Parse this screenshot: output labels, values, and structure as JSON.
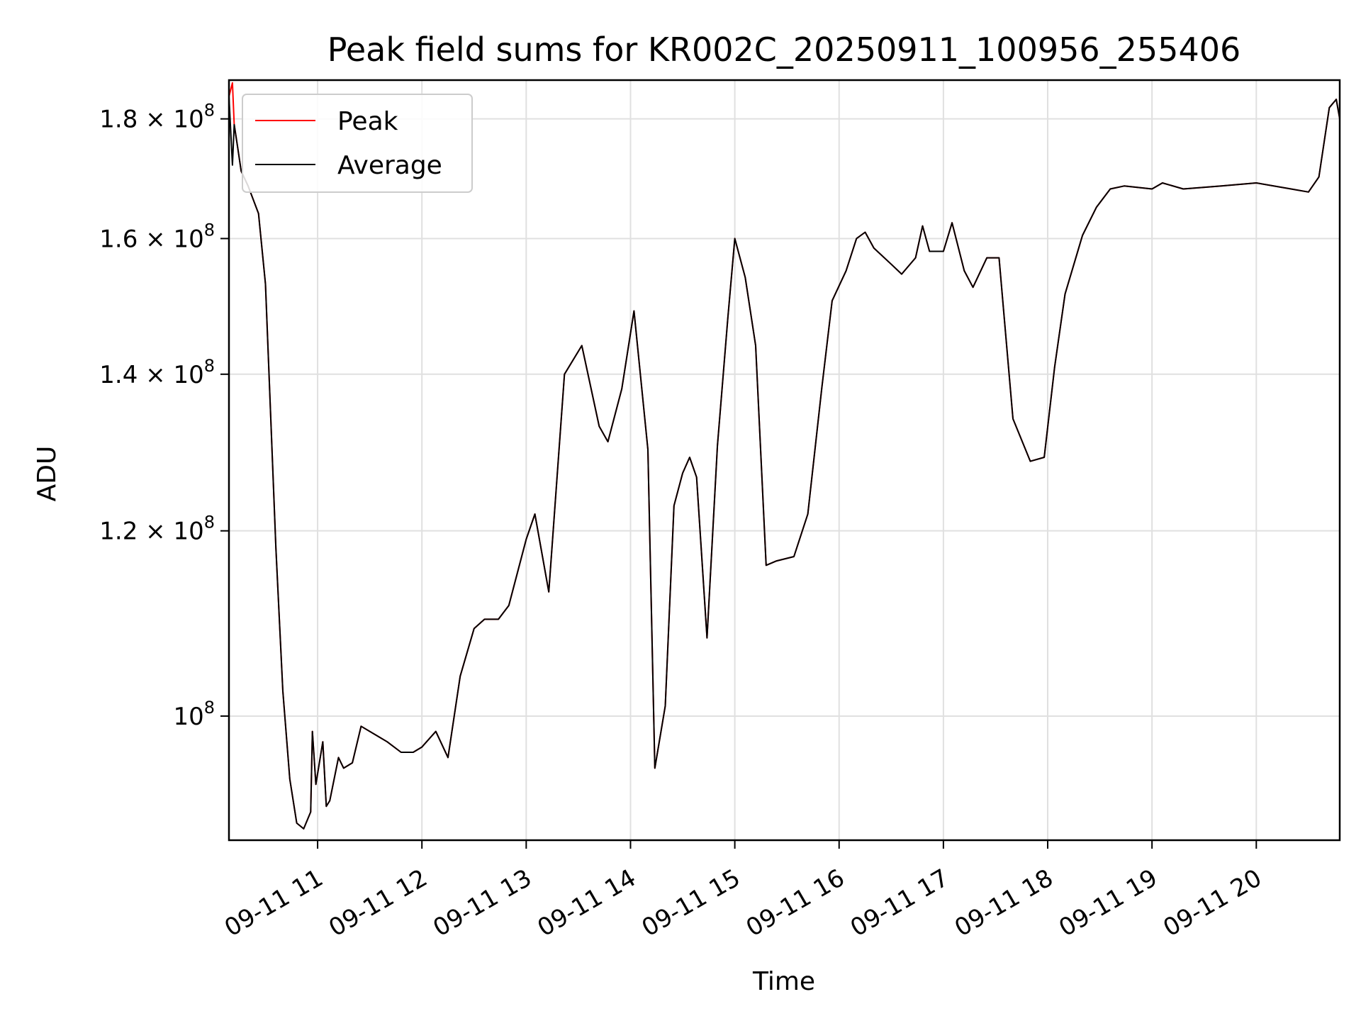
{
  "chart_data": {
    "type": "line",
    "title": "Peak field sums for KR002C_20250911_100956_255406",
    "xlabel": "Time",
    "ylabel": "ADU",
    "x_axis": {
      "ticks": [
        {
          "value": "2025-09-11 11:00",
          "label": "09-11 11"
        },
        {
          "value": "2025-09-11 12:00",
          "label": "09-11 12"
        },
        {
          "value": "2025-09-11 13:00",
          "label": "09-11 13"
        },
        {
          "value": "2025-09-11 14:00",
          "label": "09-11 14"
        },
        {
          "value": "2025-09-11 15:00",
          "label": "09-11 15"
        },
        {
          "value": "2025-09-11 16:00",
          "label": "09-11 16"
        },
        {
          "value": "2025-09-11 17:00",
          "label": "09-11 17"
        },
        {
          "value": "2025-09-11 18:00",
          "label": "09-11 18"
        },
        {
          "value": "2025-09-11 19:00",
          "label": "09-11 19"
        },
        {
          "value": "2025-09-11 20:00",
          "label": "09-11 20"
        }
      ],
      "xlim": [
        "2025-09-11 10:09",
        "2025-09-11 20:48"
      ]
    },
    "y_axis": {
      "scale": "log",
      "ylim": [
        88500000,
        187000000
      ],
      "ticks": [
        {
          "value": 100000000,
          "mantissa": "",
          "exp": "8"
        },
        {
          "value": 120000000,
          "mantissa": "1.2",
          "exp": "8"
        },
        {
          "value": 140000000,
          "mantissa": "1.4",
          "exp": "8"
        },
        {
          "value": 160000000,
          "mantissa": "1.6",
          "exp": "8"
        },
        {
          "value": 180000000,
          "mantissa": "1.8",
          "exp": "8"
        }
      ]
    },
    "grid": true,
    "legend_position": "top-left",
    "series": [
      {
        "name": "Peak",
        "color": "#ff0000",
        "x": [
          "2025-09-11 10:09",
          "2025-09-11 10:11",
          "2025-09-11 10:12",
          "2025-09-11 10:14",
          "2025-09-11 10:16",
          "2025-09-11 10:20",
          "2025-09-11 10:26",
          "2025-09-11 10:30",
          "2025-09-11 10:36",
          "2025-09-11 10:40",
          "2025-09-11 10:44",
          "2025-09-11 10:48",
          "2025-09-11 10:52",
          "2025-09-11 10:56",
          "2025-09-11 10:57",
          "2025-09-11 10:59",
          "2025-09-11 11:03",
          "2025-09-11 11:05",
          "2025-09-11 11:07",
          "2025-09-11 11:12",
          "2025-09-11 11:15",
          "2025-09-11 11:20",
          "2025-09-11 11:25",
          "2025-09-11 11:35",
          "2025-09-11 11:40",
          "2025-09-11 11:48",
          "2025-09-11 11:55",
          "2025-09-11 12:00",
          "2025-09-11 12:08",
          "2025-09-11 12:15",
          "2025-09-11 12:22",
          "2025-09-11 12:30",
          "2025-09-11 12:36",
          "2025-09-11 12:44",
          "2025-09-11 12:50",
          "2025-09-11 13:00",
          "2025-09-11 13:05",
          "2025-09-11 13:13",
          "2025-09-11 13:22",
          "2025-09-11 13:32",
          "2025-09-11 13:42",
          "2025-09-11 13:47",
          "2025-09-11 13:55",
          "2025-09-11 14:02",
          "2025-09-11 14:10",
          "2025-09-11 14:14",
          "2025-09-11 14:20",
          "2025-09-11 14:25",
          "2025-09-11 14:30",
          "2025-09-11 14:34",
          "2025-09-11 14:38",
          "2025-09-11 14:44",
          "2025-09-11 14:50",
          "2025-09-11 14:56",
          "2025-09-11 15:00",
          "2025-09-11 15:06",
          "2025-09-11 15:12",
          "2025-09-11 15:18",
          "2025-09-11 15:24",
          "2025-09-11 15:34",
          "2025-09-11 15:42",
          "2025-09-11 15:50",
          "2025-09-11 15:56",
          "2025-09-11 16:04",
          "2025-09-11 16:10",
          "2025-09-11 16:15",
          "2025-09-11 16:20",
          "2025-09-11 16:30",
          "2025-09-11 16:36",
          "2025-09-11 16:44",
          "2025-09-11 16:48",
          "2025-09-11 16:52",
          "2025-09-11 17:00",
          "2025-09-11 17:05",
          "2025-09-11 17:12",
          "2025-09-11 17:17",
          "2025-09-11 17:25",
          "2025-09-11 17:32",
          "2025-09-11 17:40",
          "2025-09-11 17:50",
          "2025-09-11 17:58",
          "2025-09-11 18:04",
          "2025-09-11 18:10",
          "2025-09-11 18:20",
          "2025-09-11 18:28",
          "2025-09-11 18:36",
          "2025-09-11 18:44",
          "2025-09-11 19:00",
          "2025-09-11 19:06",
          "2025-09-11 19:18",
          "2025-09-11 19:40",
          "2025-09-11 20:00",
          "2025-09-11 20:20",
          "2025-09-11 20:30",
          "2025-09-11 20:36",
          "2025-09-11 20:42",
          "2025-09-11 20:46",
          "2025-09-11 20:48"
        ],
        "y": [
          184000000,
          186500000,
          179000000,
          175000000,
          171000000,
          168500000,
          164000000,
          153000000,
          118000000,
          102500000,
          94000000,
          90000000,
          89500000,
          91000000,
          98500000,
          93500000,
          97500000,
          91500000,
          92000000,
          96000000,
          95000000,
          95500000,
          99000000,
          98000000,
          97500000,
          96500000,
          96500000,
          97000000,
          98500000,
          96000000,
          104000000,
          109000000,
          110000000,
          110000000,
          111500000,
          119000000,
          122000000,
          113000000,
          140000000,
          144000000,
          133000000,
          131000000,
          138000000,
          149000000,
          130000000,
          95000000,
          101000000,
          123000000,
          127000000,
          129000000,
          126500000,
          108000000,
          130500000,
          148000000,
          160000000,
          154000000,
          144000000,
          116000000,
          116500000,
          117000000,
          122000000,
          138000000,
          150500000,
          155000000,
          160000000,
          161000000,
          158500000,
          156000000,
          154500000,
          157000000,
          162000000,
          158000000,
          158000000,
          162500000,
          155000000,
          152500000,
          157000000,
          157000000,
          134000000,
          128500000,
          129000000,
          141000000,
          151500000,
          160500000,
          165000000,
          168000000,
          168500000,
          168000000,
          169000000,
          168000000,
          168500000,
          169000000,
          168000000,
          167500000,
          170000000,
          182000000,
          183500000,
          180000000
        ],
        "note": "Peak closely tracks Average except for a brief spike to the top of the axis at the very start."
      },
      {
        "name": "Average",
        "color": "#000000",
        "x": [
          "2025-09-11 10:09",
          "2025-09-11 10:11",
          "2025-09-11 10:12",
          "2025-09-11 10:14",
          "2025-09-11 10:16",
          "2025-09-11 10:20",
          "2025-09-11 10:26",
          "2025-09-11 10:30",
          "2025-09-11 10:36",
          "2025-09-11 10:40",
          "2025-09-11 10:44",
          "2025-09-11 10:48",
          "2025-09-11 10:52",
          "2025-09-11 10:56",
          "2025-09-11 10:57",
          "2025-09-11 10:59",
          "2025-09-11 11:03",
          "2025-09-11 11:05",
          "2025-09-11 11:07",
          "2025-09-11 11:12",
          "2025-09-11 11:15",
          "2025-09-11 11:20",
          "2025-09-11 11:25",
          "2025-09-11 11:35",
          "2025-09-11 11:40",
          "2025-09-11 11:48",
          "2025-09-11 11:55",
          "2025-09-11 12:00",
          "2025-09-11 12:08",
          "2025-09-11 12:15",
          "2025-09-11 12:22",
          "2025-09-11 12:30",
          "2025-09-11 12:36",
          "2025-09-11 12:44",
          "2025-09-11 12:50",
          "2025-09-11 13:00",
          "2025-09-11 13:05",
          "2025-09-11 13:13",
          "2025-09-11 13:22",
          "2025-09-11 13:32",
          "2025-09-11 13:42",
          "2025-09-11 13:47",
          "2025-09-11 13:55",
          "2025-09-11 14:02",
          "2025-09-11 14:10",
          "2025-09-11 14:14",
          "2025-09-11 14:20",
          "2025-09-11 14:25",
          "2025-09-11 14:30",
          "2025-09-11 14:34",
          "2025-09-11 14:38",
          "2025-09-11 14:44",
          "2025-09-11 14:50",
          "2025-09-11 14:56",
          "2025-09-11 15:00",
          "2025-09-11 15:06",
          "2025-09-11 15:12",
          "2025-09-11 15:18",
          "2025-09-11 15:24",
          "2025-09-11 15:34",
          "2025-09-11 15:42",
          "2025-09-11 15:50",
          "2025-09-11 15:56",
          "2025-09-11 16:04",
          "2025-09-11 16:10",
          "2025-09-11 16:15",
          "2025-09-11 16:20",
          "2025-09-11 16:30",
          "2025-09-11 16:36",
          "2025-09-11 16:44",
          "2025-09-11 16:48",
          "2025-09-11 16:52",
          "2025-09-11 17:00",
          "2025-09-11 17:05",
          "2025-09-11 17:12",
          "2025-09-11 17:17",
          "2025-09-11 17:25",
          "2025-09-11 17:32",
          "2025-09-11 17:40",
          "2025-09-11 17:50",
          "2025-09-11 17:58",
          "2025-09-11 18:04",
          "2025-09-11 18:10",
          "2025-09-11 18:20",
          "2025-09-11 18:28",
          "2025-09-11 18:36",
          "2025-09-11 18:44",
          "2025-09-11 19:00",
          "2025-09-11 19:06",
          "2025-09-11 19:18",
          "2025-09-11 19:40",
          "2025-09-11 20:00",
          "2025-09-11 20:20",
          "2025-09-11 20:30",
          "2025-09-11 20:36",
          "2025-09-11 20:42",
          "2025-09-11 20:46",
          "2025-09-11 20:48"
        ],
        "y": [
          184000000,
          172000000,
          179000000,
          175000000,
          171000000,
          168500000,
          164000000,
          153000000,
          118000000,
          102500000,
          94000000,
          90000000,
          89500000,
          91000000,
          98500000,
          93500000,
          97500000,
          91500000,
          92000000,
          96000000,
          95000000,
          95500000,
          99000000,
          98000000,
          97500000,
          96500000,
          96500000,
          97000000,
          98500000,
          96000000,
          104000000,
          109000000,
          110000000,
          110000000,
          111500000,
          119000000,
          122000000,
          113000000,
          140000000,
          144000000,
          133000000,
          131000000,
          138000000,
          149000000,
          130000000,
          95000000,
          101000000,
          123000000,
          127000000,
          129000000,
          126500000,
          108000000,
          130500000,
          148000000,
          160000000,
          154000000,
          144000000,
          116000000,
          116500000,
          117000000,
          122000000,
          138000000,
          150500000,
          155000000,
          160000000,
          161000000,
          158500000,
          156000000,
          154500000,
          157000000,
          162000000,
          158000000,
          158000000,
          162500000,
          155000000,
          152500000,
          157000000,
          157000000,
          134000000,
          128500000,
          129000000,
          141000000,
          151500000,
          160500000,
          165000000,
          168000000,
          168500000,
          168000000,
          169000000,
          168000000,
          168500000,
          169000000,
          168000000,
          167500000,
          170000000,
          182000000,
          183500000,
          180000000
        ]
      }
    ]
  }
}
